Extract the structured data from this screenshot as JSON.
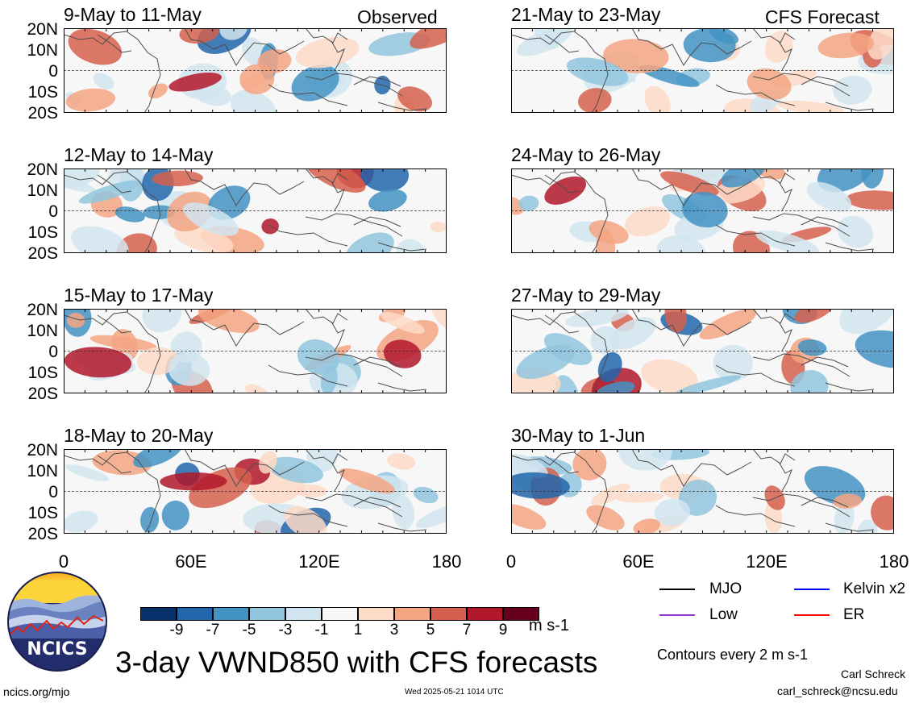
{
  "panels": [
    {
      "title": "9-May to 11-May",
      "tag": "Observed"
    },
    {
      "title": "12-May to 14-May",
      "tag": ""
    },
    {
      "title": "15-May to 17-May",
      "tag": ""
    },
    {
      "title": "18-May to 20-May",
      "tag": ""
    },
    {
      "title": "21-May to 23-May",
      "tag": "CFS Forecast"
    },
    {
      "title": "24-May to 26-May",
      "tag": ""
    },
    {
      "title": "27-May to 29-May",
      "tag": ""
    },
    {
      "title": "30-May to 1-Jun",
      "tag": ""
    }
  ],
  "lat_labels": [
    "20N",
    "10N",
    "0",
    "10S",
    "20S"
  ],
  "lon_labels": [
    "0",
    "60E",
    "120E",
    "180"
  ],
  "colorbar": {
    "labels": [
      "-9",
      "-7",
      "-5",
      "-3",
      "-1",
      "1",
      "3",
      "5",
      "7",
      "9"
    ],
    "colors": [
      "#08306b",
      "#2166ac",
      "#4393c3",
      "#92c5de",
      "#d1e5f0",
      "#f7f7f7",
      "#fddbc7",
      "#f4a582",
      "#d6604d",
      "#b2182b",
      "#67001f"
    ],
    "units": "m s-1"
  },
  "legend": {
    "items": [
      {
        "label": "MJO",
        "color": "#000000"
      },
      {
        "label": "Kelvin x2",
        "color": "#0000ff"
      },
      {
        "label": "Low",
        "color": "#9933cc"
      },
      {
        "label": "ER",
        "color": "#ff0000"
      }
    ],
    "contours": "Contours every 2 m s-1"
  },
  "logo": {
    "text": "NCICS"
  },
  "main_title": "3-day VWND850 with CFS forecasts",
  "footer": {
    "url": "ncics.org/mjo",
    "timestamp": "Wed 2025-05-21 1014 UTC",
    "author": "Carl Schreck",
    "email": "carl_schreck@ncsu.edu"
  }
}
